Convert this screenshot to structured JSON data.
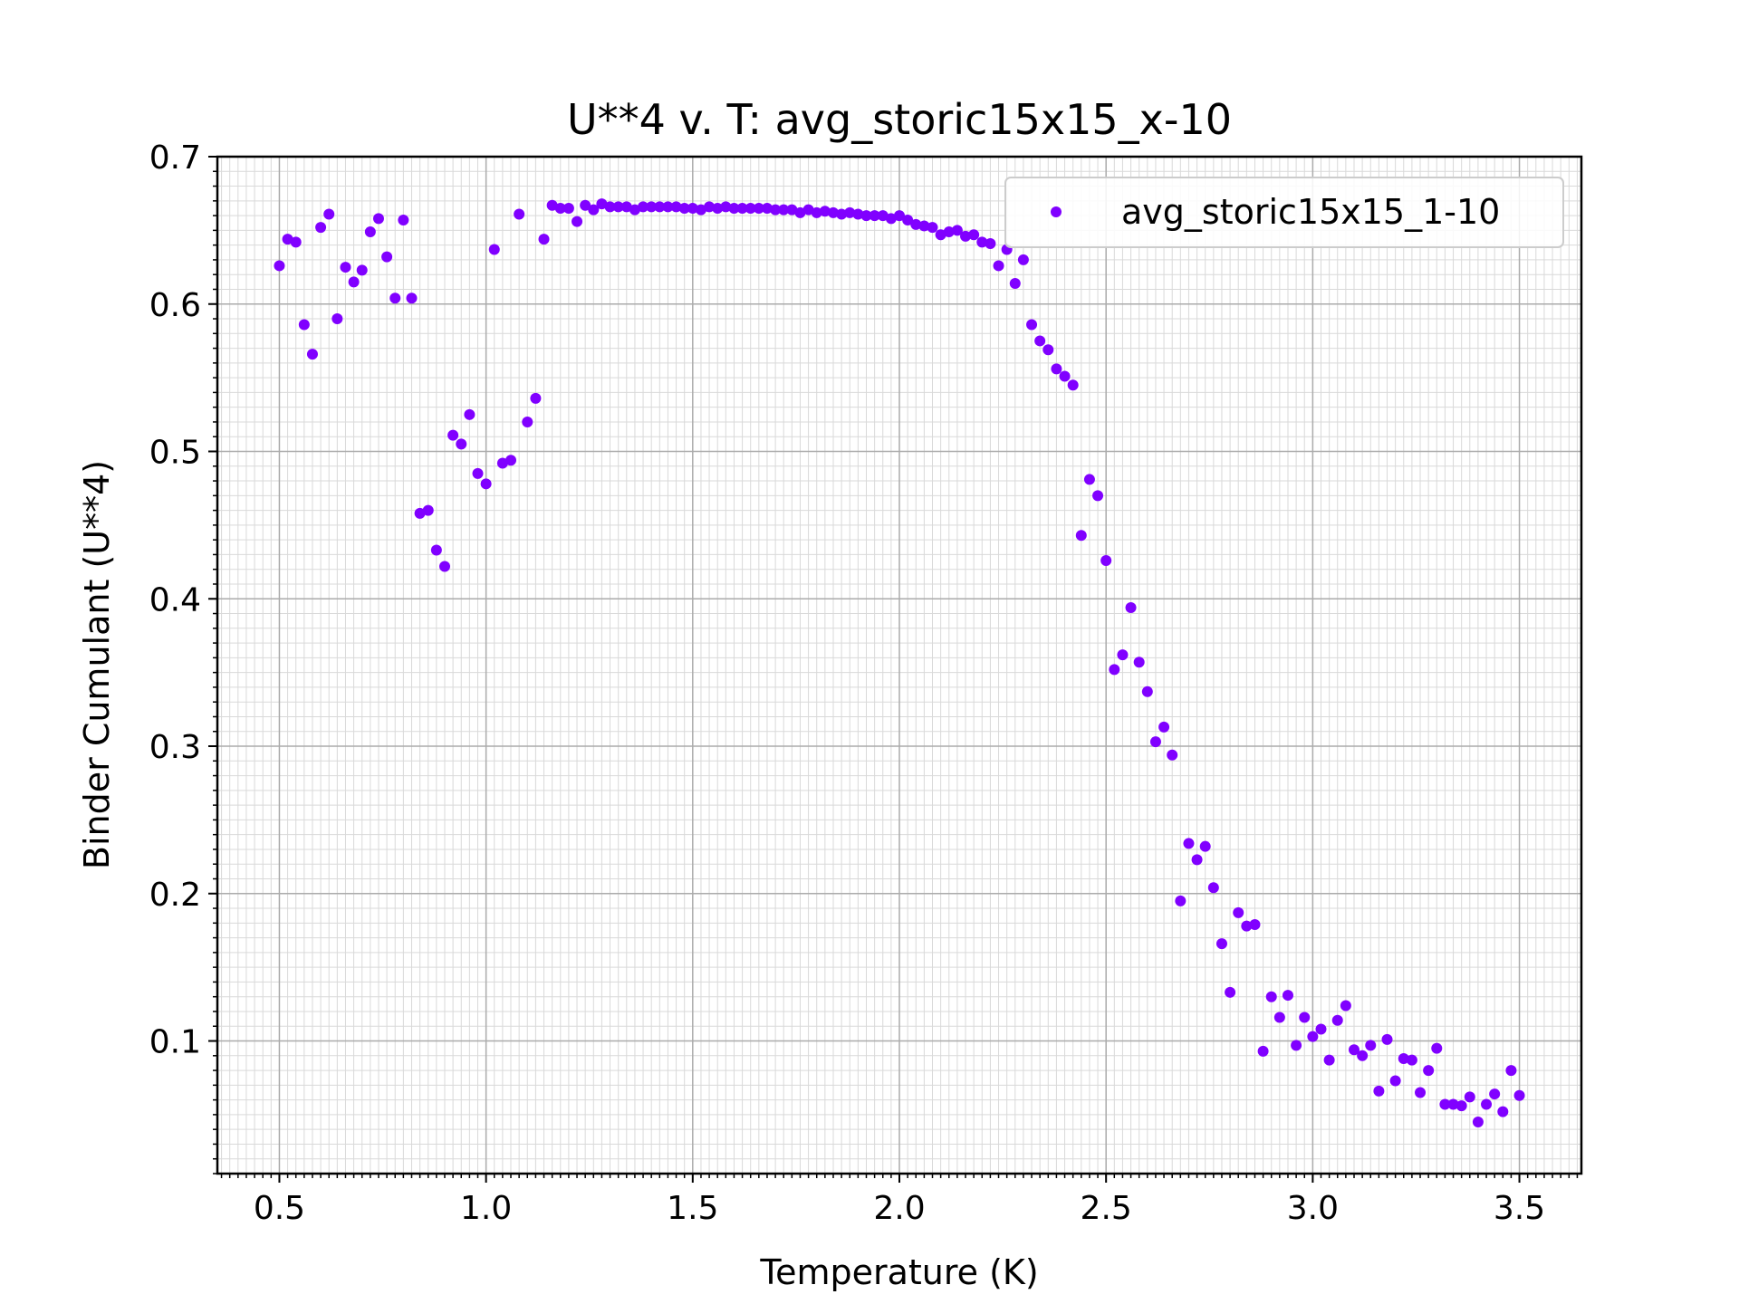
{
  "chart_data": {
    "type": "scatter",
    "title": "U**4 v. T: avg_storic15x15_x-10",
    "xlabel": "Temperature (K)",
    "ylabel": "Binder Cumulant (U**4)",
    "xlim": [
      0.35,
      3.65
    ],
    "ylim": [
      0.01,
      0.7
    ],
    "xticks": [
      "0.5",
      "1.0",
      "1.5",
      "2.0",
      "2.5",
      "3.0",
      "3.5"
    ],
    "yticks": [
      "0.1",
      "0.2",
      "0.3",
      "0.4",
      "0.5",
      "0.6",
      "0.7"
    ],
    "grid": "major and minor",
    "legend_position": "top-right",
    "series": [
      {
        "name": "avg_storic15x15_1-10",
        "color": "#8000ff",
        "x": [
          0.5,
          0.52,
          0.54,
          0.56,
          0.58,
          0.6,
          0.62,
          0.64,
          0.66,
          0.68,
          0.7,
          0.72,
          0.74,
          0.76,
          0.78,
          0.8,
          0.82,
          0.84,
          0.86,
          0.88,
          0.9,
          0.92,
          0.94,
          0.96,
          0.98,
          1.0,
          1.02,
          1.04,
          1.06,
          1.08,
          1.1,
          1.12,
          1.14,
          1.16,
          1.18,
          1.2,
          1.22,
          1.24,
          1.26,
          1.28,
          1.3,
          1.32,
          1.34,
          1.36,
          1.38,
          1.4,
          1.42,
          1.44,
          1.46,
          1.48,
          1.5,
          1.52,
          1.54,
          1.56,
          1.58,
          1.6,
          1.62,
          1.64,
          1.66,
          1.68,
          1.7,
          1.72,
          1.74,
          1.76,
          1.78,
          1.8,
          1.82,
          1.84,
          1.86,
          1.88,
          1.9,
          1.92,
          1.94,
          1.96,
          1.98,
          2.0,
          2.02,
          2.04,
          2.06,
          2.08,
          2.1,
          2.12,
          2.14,
          2.16,
          2.18,
          2.2,
          2.22,
          2.24,
          2.26,
          2.28,
          2.3,
          2.32,
          2.34,
          2.36,
          2.38,
          2.4,
          2.42,
          2.44,
          2.46,
          2.48,
          2.5,
          2.52,
          2.54,
          2.56,
          2.58,
          2.6,
          2.62,
          2.64,
          2.66,
          2.68,
          2.7,
          2.72,
          2.74,
          2.76,
          2.78,
          2.8,
          2.82,
          2.84,
          2.86,
          2.88,
          2.9,
          2.92,
          2.94,
          2.96,
          2.98,
          3.0,
          3.02,
          3.04,
          3.06,
          3.08,
          3.1,
          3.12,
          3.14,
          3.16,
          3.18,
          3.2,
          3.22,
          3.24,
          3.26,
          3.28,
          3.3,
          3.32,
          3.34,
          3.36,
          3.38,
          3.4,
          3.42,
          3.44,
          3.46,
          3.48,
          3.5
        ],
        "y": [
          0.626,
          0.644,
          0.642,
          0.586,
          0.566,
          0.652,
          0.661,
          0.59,
          0.625,
          0.615,
          0.623,
          0.649,
          0.658,
          0.632,
          0.604,
          0.657,
          0.604,
          0.458,
          0.46,
          0.433,
          0.422,
          0.511,
          0.505,
          0.525,
          0.485,
          0.478,
          0.637,
          0.492,
          0.494,
          0.661,
          0.52,
          0.536,
          0.644,
          0.667,
          0.665,
          0.665,
          0.656,
          0.667,
          0.664,
          0.668,
          0.666,
          0.666,
          0.666,
          0.664,
          0.666,
          0.666,
          0.666,
          0.666,
          0.666,
          0.665,
          0.665,
          0.664,
          0.666,
          0.665,
          0.666,
          0.665,
          0.665,
          0.665,
          0.665,
          0.665,
          0.664,
          0.664,
          0.664,
          0.662,
          0.664,
          0.662,
          0.663,
          0.662,
          0.661,
          0.662,
          0.661,
          0.66,
          0.66,
          0.66,
          0.658,
          0.66,
          0.657,
          0.654,
          0.653,
          0.652,
          0.647,
          0.649,
          0.65,
          0.646,
          0.647,
          0.642,
          0.641,
          0.626,
          0.637,
          0.614,
          0.63,
          0.586,
          0.575,
          0.569,
          0.556,
          0.551,
          0.545,
          0.443,
          0.481,
          0.47,
          0.426,
          0.352,
          0.362,
          0.394,
          0.357,
          0.337,
          0.303,
          0.313,
          0.294,
          0.195,
          0.234,
          0.223,
          0.232,
          0.204,
          0.166,
          0.133,
          0.187,
          0.178,
          0.179,
          0.093,
          0.13,
          0.116,
          0.131,
          0.097,
          0.116,
          0.103,
          0.108,
          0.087,
          0.114,
          0.124,
          0.094,
          0.09,
          0.097,
          0.066,
          0.101,
          0.073,
          0.088,
          0.087,
          0.065,
          0.08,
          0.095,
          0.057,
          0.057,
          0.056,
          0.062,
          0.045,
          0.057,
          0.064,
          0.052,
          0.08,
          0.063
        ]
      }
    ]
  }
}
